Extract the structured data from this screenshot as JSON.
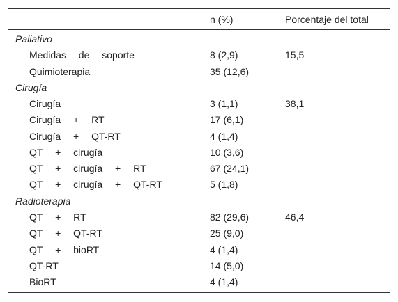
{
  "table": {
    "header": [
      "n (%)",
      "Porcentaje del total"
    ],
    "groups": [
      {
        "name": "Paliativo",
        "rows": [
          {
            "label": "Medidas de soporte",
            "n": "8 (2,9)",
            "pct": "15,5"
          },
          {
            "label": "Quimioterapia",
            "n": "35 (12,6)",
            "pct": null
          }
        ]
      },
      {
        "name": "Cirugía",
        "rows": [
          {
            "label": "Cirugía",
            "n": "3 (1,1)",
            "pct": "38,1"
          },
          {
            "label": "Cirugía + RT",
            "n": "17 (6,1)",
            "pct": null
          },
          {
            "label": "Cirugía + QT-RT",
            "n": "4 (1,4)",
            "pct": null
          },
          {
            "label": "QT + cirugía",
            "n": "10 (3,6)",
            "pct": null
          },
          {
            "label": "QT + cirugía + RT",
            "n": "67 (24,1)",
            "pct": null
          },
          {
            "label": "QT + cirugía + QT-RT",
            "n": "5 (1,8)",
            "pct": null
          }
        ]
      },
      {
        "name": "Radioterapia",
        "rows": [
          {
            "label": "QT + RT",
            "n": "82 (29,6)",
            "pct": "46,4"
          },
          {
            "label": "QT + QT-RT",
            "n": "25 (9,0)",
            "pct": null
          },
          {
            "label": "QT + bioRT",
            "n": "4 (1,4)",
            "pct": null
          },
          {
            "label": "QT-RT",
            "n": "14 (5,0)",
            "pct": null
          },
          {
            "label": "BioRT",
            "n": "4 (1,4)",
            "pct": null
          }
        ]
      }
    ]
  }
}
